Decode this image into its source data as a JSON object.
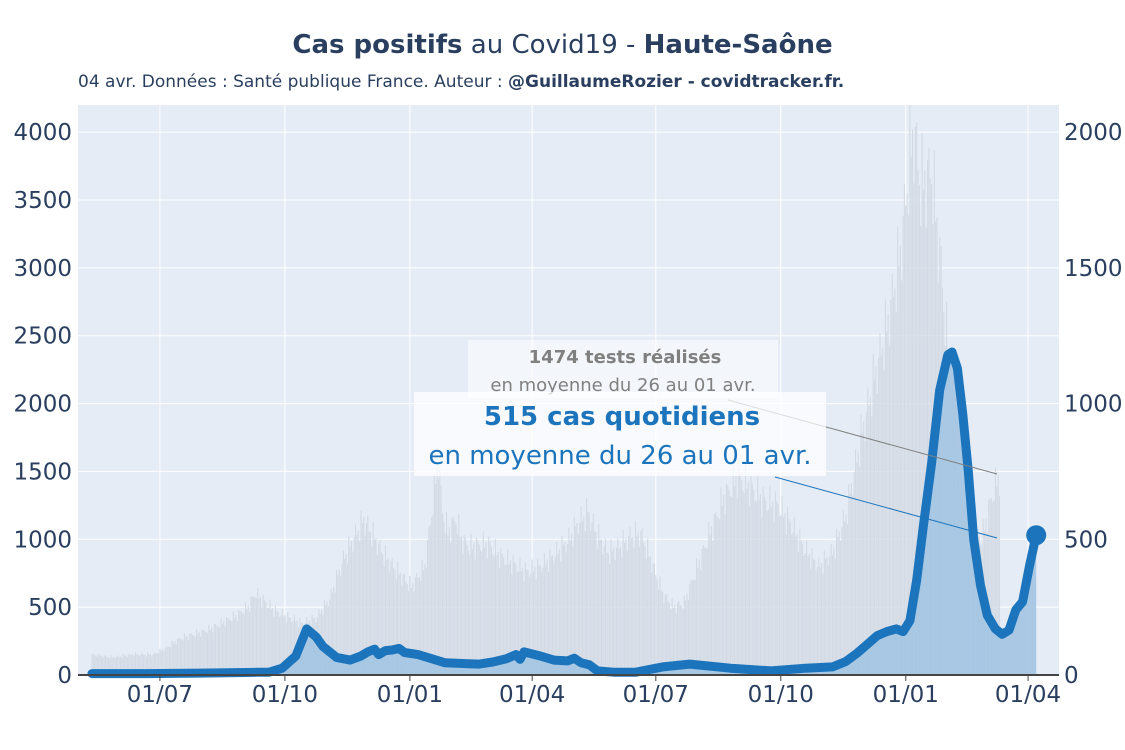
{
  "header": {
    "title_bold_1": "Cas positifs",
    "title_mid": " au Covid19 - ",
    "title_bold_2": "Haute-Saône",
    "subtitle_plain": "04 avr. Données : Santé publique France. Auteur : ",
    "subtitle_bold": "@GuillaumeRozier - covidtracker.fr."
  },
  "annotations": {
    "tests_title": "1474 tests réalisés",
    "tests_sub": "en moyenne du 26 au 01 avr.",
    "cases_title": "515 cas quotidiens",
    "cases_sub": "en moyenne du 26 au 01 avr."
  },
  "colors": {
    "plot_bg": "#e5ecf6",
    "cases_line": "#1c75bc",
    "cases_fill": "#a3c4e2",
    "tests_bars": "#d3dae4",
    "text": "#2a3f5f",
    "tests_annotation": "#808080"
  },
  "chart_data": {
    "type": "line",
    "x_ticks": [
      "01/07",
      "01/10",
      "01/01",
      "01/04",
      "01/07",
      "01/10",
      "01/01",
      "01/04"
    ],
    "y_left_ticks": [
      "0",
      "500",
      "1000",
      "1500",
      "2000",
      "2500",
      "3000",
      "3500",
      "4000"
    ],
    "y_right_ticks": [
      "0",
      "500",
      "1000",
      "1500",
      "2000"
    ],
    "y_left_range": [
      0,
      4200
    ],
    "y_right_range": [
      0,
      2100
    ],
    "x_range_days": [
      0,
      700
    ],
    "grid": true,
    "series": [
      {
        "name": "",
        "axis": "left",
        "style": "bars",
        "points": [
          [
            0,
            150
          ],
          [
            15,
            130
          ],
          [
            30,
            150
          ],
          [
            45,
            150
          ],
          [
            55,
            200
          ],
          [
            65,
            270
          ],
          [
            75,
            300
          ],
          [
            85,
            330
          ],
          [
            95,
            380
          ],
          [
            105,
            430
          ],
          [
            115,
            500
          ],
          [
            120,
            600
          ],
          [
            125,
            560
          ],
          [
            135,
            470
          ],
          [
            145,
            420
          ],
          [
            155,
            380
          ],
          [
            165,
            420
          ],
          [
            175,
            560
          ],
          [
            185,
            850
          ],
          [
            195,
            1050
          ],
          [
            200,
            1140
          ],
          [
            205,
            1060
          ],
          [
            215,
            880
          ],
          [
            225,
            760
          ],
          [
            235,
            650
          ],
          [
            245,
            800
          ],
          [
            252,
            1350
          ],
          [
            255,
            1600
          ],
          [
            258,
            1200
          ],
          [
            262,
            1050
          ],
          [
            268,
            1150
          ],
          [
            272,
            1000
          ],
          [
            278,
            940
          ],
          [
            285,
            960
          ],
          [
            292,
            960
          ],
          [
            300,
            880
          ],
          [
            310,
            820
          ],
          [
            320,
            760
          ],
          [
            330,
            800
          ],
          [
            340,
            880
          ],
          [
            350,
            980
          ],
          [
            358,
            1120
          ],
          [
            365,
            1200
          ],
          [
            372,
            1030
          ],
          [
            380,
            900
          ],
          [
            388,
            940
          ],
          [
            396,
            1020
          ],
          [
            404,
            1040
          ],
          [
            412,
            830
          ],
          [
            420,
            600
          ],
          [
            428,
            500
          ],
          [
            436,
            530
          ],
          [
            445,
            780
          ],
          [
            455,
            1050
          ],
          [
            465,
            1300
          ],
          [
            475,
            1450
          ],
          [
            485,
            1380
          ],
          [
            495,
            1280
          ],
          [
            505,
            1250
          ],
          [
            515,
            1100
          ],
          [
            525,
            920
          ],
          [
            535,
            800
          ],
          [
            545,
            900
          ],
          [
            555,
            1180
          ],
          [
            565,
            1700
          ],
          [
            575,
            2150
          ],
          [
            585,
            2550
          ],
          [
            595,
            3100
          ],
          [
            602,
            3800
          ],
          [
            605,
            4000
          ],
          [
            610,
            3600
          ],
          [
            618,
            3700
          ],
          [
            625,
            3000
          ],
          [
            632,
            2100
          ],
          [
            640,
            1300
          ],
          [
            648,
            1080
          ],
          [
            655,
            1000
          ],
          [
            662,
            1300
          ],
          [
            668,
            1474
          ]
        ]
      },
      {
        "name": "",
        "axis": "right",
        "style": "area-line",
        "points": [
          [
            0,
            5
          ],
          [
            40,
            5
          ],
          [
            80,
            7
          ],
          [
            122,
            10
          ],
          [
            130,
            10
          ],
          [
            140,
            25
          ],
          [
            150,
            70
          ],
          [
            158,
            170
          ],
          [
            165,
            140
          ],
          [
            170,
            105
          ],
          [
            180,
            65
          ],
          [
            190,
            55
          ],
          [
            198,
            70
          ],
          [
            203,
            85
          ],
          [
            208,
            95
          ],
          [
            211,
            75
          ],
          [
            216,
            90
          ],
          [
            221,
            92
          ],
          [
            226,
            98
          ],
          [
            230,
            83
          ],
          [
            240,
            75
          ],
          [
            250,
            60
          ],
          [
            260,
            45
          ],
          [
            275,
            42
          ],
          [
            285,
            40
          ],
          [
            295,
            48
          ],
          [
            305,
            60
          ],
          [
            312,
            75
          ],
          [
            315,
            58
          ],
          [
            318,
            85
          ],
          [
            330,
            70
          ],
          [
            340,
            55
          ],
          [
            350,
            52
          ],
          [
            355,
            62
          ],
          [
            360,
            45
          ],
          [
            366,
            38
          ],
          [
            372,
            15
          ],
          [
            385,
            10
          ],
          [
            400,
            10
          ],
          [
            410,
            20
          ],
          [
            420,
            30
          ],
          [
            440,
            40
          ],
          [
            470,
            25
          ],
          [
            500,
            15
          ],
          [
            525,
            25
          ],
          [
            545,
            30
          ],
          [
            555,
            50
          ],
          [
            563,
            80
          ],
          [
            570,
            110
          ],
          [
            578,
            145
          ],
          [
            585,
            160
          ],
          [
            592,
            170
          ],
          [
            597,
            160
          ],
          [
            602,
            200
          ],
          [
            607,
            350
          ],
          [
            612,
            550
          ],
          [
            618,
            780
          ],
          [
            624,
            1050
          ],
          [
            630,
            1180
          ],
          [
            633,
            1190
          ],
          [
            637,
            1130
          ],
          [
            641,
            960
          ],
          [
            645,
            750
          ],
          [
            649,
            500
          ],
          [
            654,
            330
          ],
          [
            659,
            220
          ],
          [
            665,
            170
          ],
          [
            670,
            150
          ],
          [
            675,
            165
          ],
          [
            680,
            240
          ],
          [
            685,
            270
          ],
          [
            690,
            400
          ],
          [
            695,
            515
          ]
        ]
      }
    ]
  }
}
